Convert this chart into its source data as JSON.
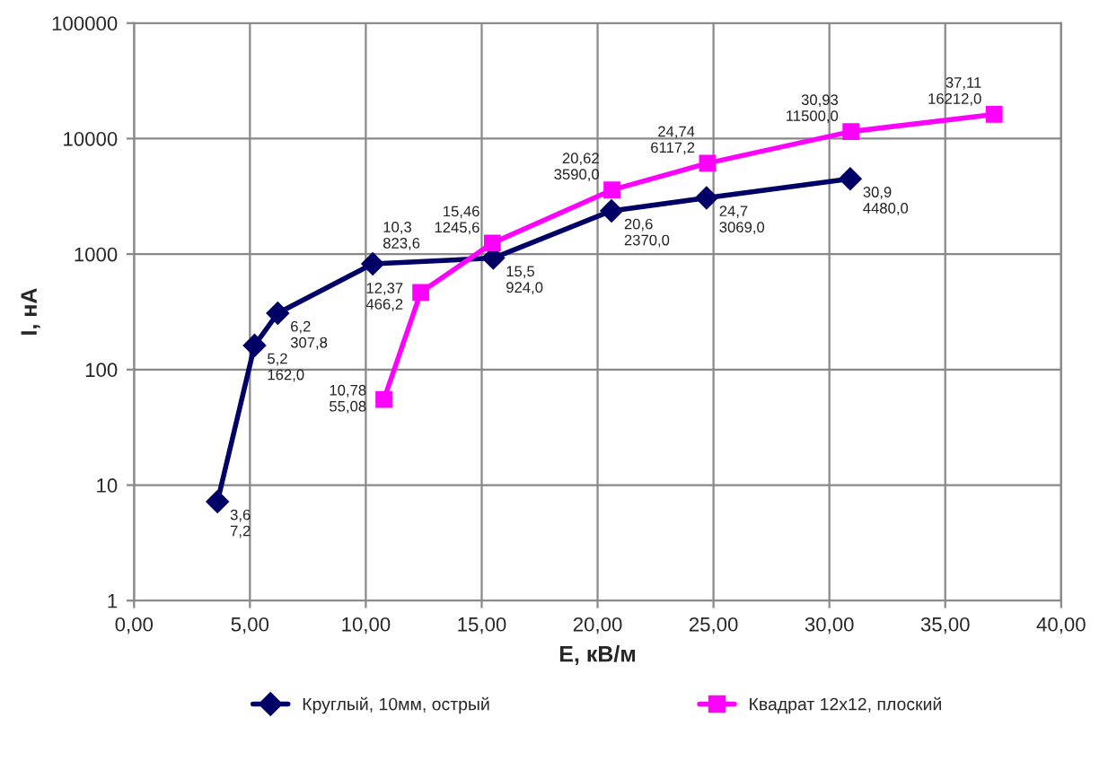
{
  "chart_data": {
    "type": "line",
    "xlabel": "E, кВ/м",
    "ylabel": "I, нА",
    "log": "y",
    "xlim": [
      0,
      40
    ],
    "xticks": [
      {
        "value": 0,
        "label": "0,00"
      },
      {
        "value": 5,
        "label": "5,00"
      },
      {
        "value": 10,
        "label": "10,00"
      },
      {
        "value": 15,
        "label": "15,00"
      },
      {
        "value": 20,
        "label": "20,00"
      },
      {
        "value": 25,
        "label": "25,00"
      },
      {
        "value": 30,
        "label": "30,00"
      },
      {
        "value": 35,
        "label": "35,00"
      },
      {
        "value": 40,
        "label": "40,00"
      }
    ],
    "ylim": [
      1,
      100000
    ],
    "yticks": [
      1,
      10,
      100,
      1000,
      10000,
      100000
    ],
    "grid": true,
    "legend": "bottom",
    "series": [
      {
        "name": "Круглый, 10мм, острый",
        "color": "#000066",
        "marker": "diamond",
        "x": [
          3.6,
          5.2,
          6.2,
          10.3,
          15.5,
          20.6,
          24.7,
          30.9
        ],
        "values": [
          7.2,
          162.0,
          307.8,
          823.6,
          924.0,
          2370.0,
          3069.0,
          4480.0
        ],
        "value_labels": [
          "3,6\n7,2",
          "5,2\n162,0",
          "6,2\n307,8",
          "10,3\n823,6",
          "15,5\n924,0",
          "20,6\n2370,0",
          "24,7\n3069,0",
          "30,9\n4480,0"
        ]
      },
      {
        "name": "Квадрат 12х12, плоский",
        "color": "#ff00ff",
        "marker": "square",
        "x": [
          10.78,
          12.37,
          15.46,
          20.62,
          24.74,
          30.93,
          37.11
        ],
        "values": [
          55.08,
          466.2,
          1245.6,
          3590.0,
          6117.2,
          11500.0,
          16212.0
        ],
        "value_labels": [
          "10,78\n55,08",
          "12,37\n466,2",
          "15,46\n1245,6",
          "20,62\n3590,0",
          "24,74\n6117,2",
          "30,93\n11500,0",
          "37,11\n16212,0"
        ]
      }
    ]
  }
}
